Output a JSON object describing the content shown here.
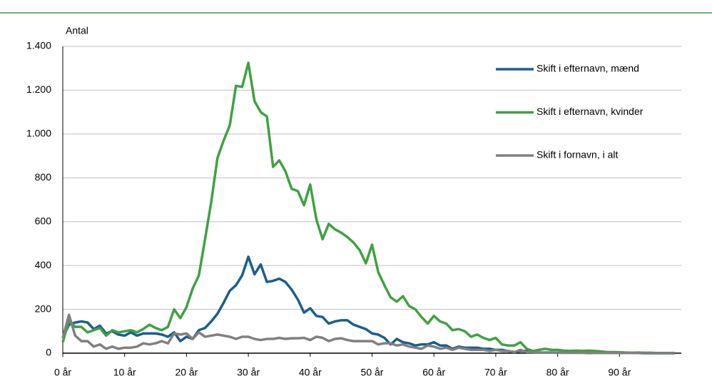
{
  "chart_data": {
    "type": "line",
    "y_label": "Antal",
    "x": [
      0,
      1,
      2,
      3,
      4,
      5,
      6,
      7,
      8,
      9,
      10,
      11,
      12,
      13,
      14,
      15,
      16,
      17,
      18,
      19,
      20,
      21,
      22,
      23,
      24,
      25,
      26,
      27,
      28,
      29,
      30,
      31,
      32,
      33,
      34,
      35,
      36,
      37,
      38,
      39,
      40,
      41,
      42,
      43,
      44,
      45,
      46,
      47,
      48,
      49,
      50,
      51,
      52,
      53,
      54,
      55,
      56,
      57,
      58,
      59,
      60,
      61,
      62,
      63,
      64,
      65,
      66,
      67,
      68,
      69,
      70,
      71,
      72,
      73,
      74,
      75,
      76,
      77,
      78,
      79,
      80,
      81,
      82,
      83,
      84,
      85,
      86,
      87,
      88,
      89,
      90,
      91,
      92,
      93,
      94,
      95,
      96,
      97,
      98,
      99
    ],
    "xlim": [
      0,
      100
    ],
    "xticks": [
      {
        "value": 0,
        "label": "0 år"
      },
      {
        "value": 10,
        "label": "10 år"
      },
      {
        "value": 20,
        "label": "20 år"
      },
      {
        "value": 30,
        "label": "30 år"
      },
      {
        "value": 40,
        "label": "40 år"
      },
      {
        "value": 50,
        "label": "50 år"
      },
      {
        "value": 60,
        "label": "60 år"
      },
      {
        "value": 70,
        "label": "70 år"
      },
      {
        "value": 80,
        "label": "80 år"
      },
      {
        "value": 90,
        "label": "90 år"
      }
    ],
    "ylim": [
      0,
      1400
    ],
    "yticks": [
      0,
      200,
      400,
      600,
      800,
      {
        "value": 1000,
        "label": "1.000"
      },
      {
        "value": 1200,
        "label": "1.200"
      },
      {
        "value": 1400,
        "label": "1.400"
      }
    ],
    "grid": true,
    "legend": "upper right",
    "series": [
      {
        "name": "Skift i efternavn, mænd",
        "color": "#1a5e8f",
        "values": [
          70,
          130,
          140,
          145,
          140,
          110,
          125,
          90,
          100,
          85,
          80,
          95,
          80,
          90,
          90,
          90,
          85,
          75,
          95,
          55,
          75,
          65,
          105,
          115,
          145,
          180,
          230,
          285,
          310,
          355,
          440,
          360,
          405,
          325,
          330,
          340,
          325,
          290,
          245,
          185,
          205,
          170,
          165,
          135,
          145,
          150,
          150,
          130,
          120,
          110,
          90,
          85,
          70,
          40,
          65,
          50,
          45,
          35,
          40,
          40,
          50,
          35,
          35,
          20,
          30,
          25,
          25,
          25,
          20,
          20,
          15,
          15,
          10,
          5,
          10,
          10,
          5,
          3,
          3,
          3,
          2,
          2,
          2,
          2,
          2,
          1,
          1,
          1,
          1,
          1,
          1,
          1,
          1,
          1,
          0,
          0,
          0,
          0,
          0,
          0
        ]
      },
      {
        "name": "Skift i efternavn, kvinder",
        "color": "#3fa142",
        "values": [
          50,
          150,
          120,
          120,
          95,
          105,
          115,
          80,
          105,
          95,
          100,
          105,
          95,
          110,
          130,
          115,
          105,
          120,
          200,
          160,
          210,
          295,
          355,
          520,
          690,
          890,
          970,
          1040,
          1220,
          1215,
          1325,
          1150,
          1100,
          1080,
          850,
          880,
          830,
          750,
          740,
          675,
          770,
          610,
          520,
          590,
          565,
          550,
          530,
          505,
          470,
          410,
          495,
          370,
          310,
          255,
          235,
          260,
          215,
          200,
          165,
          135,
          170,
          145,
          135,
          105,
          110,
          100,
          75,
          85,
          70,
          60,
          70,
          40,
          35,
          35,
          50,
          20,
          10,
          15,
          20,
          15,
          15,
          12,
          10,
          12,
          10,
          12,
          10,
          8,
          5,
          5,
          4,
          3,
          2,
          3,
          2,
          2,
          1,
          1,
          1,
          0
        ]
      },
      {
        "name": "Skift i fornavn, i alt",
        "color": "#808080",
        "values": [
          70,
          175,
          80,
          55,
          55,
          30,
          40,
          20,
          30,
          20,
          25,
          25,
          30,
          45,
          40,
          45,
          55,
          45,
          90,
          85,
          90,
          65,
          95,
          75,
          80,
          85,
          80,
          75,
          65,
          75,
          75,
          65,
          60,
          65,
          65,
          70,
          65,
          68,
          68,
          70,
          60,
          75,
          70,
          55,
          65,
          68,
          60,
          55,
          55,
          55,
          55,
          40,
          45,
          45,
          35,
          40,
          30,
          25,
          20,
          35,
          30,
          20,
          25,
          15,
          25,
          20,
          15,
          15,
          15,
          10,
          15,
          10,
          10,
          5,
          15,
          5,
          5,
          3,
          3,
          3,
          3,
          2,
          2,
          2,
          2,
          2,
          1,
          1,
          1,
          1,
          1,
          1,
          1,
          1,
          0,
          0,
          0,
          0,
          0,
          0
        ]
      }
    ]
  }
}
